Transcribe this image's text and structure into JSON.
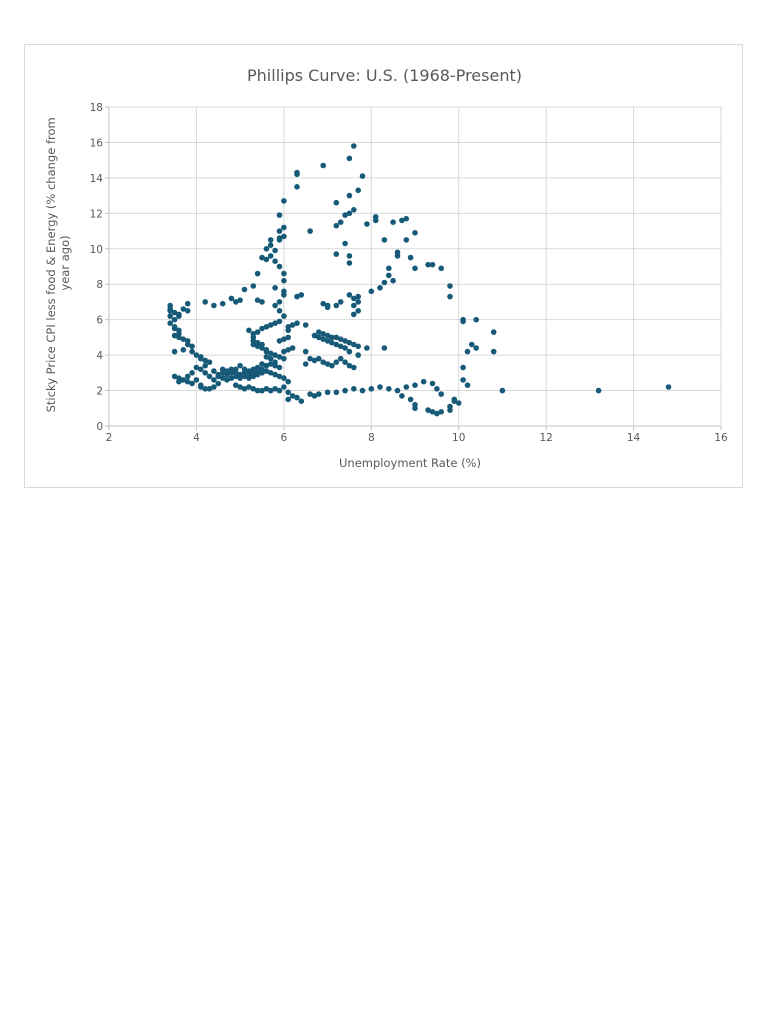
{
  "chart_data": {
    "type": "scatter",
    "title": "Phillips Curve: U.S. (1968-Present)",
    "xlabel": "Unemployment Rate (%)",
    "ylabel_lines": [
      "Sticky Price CPI less food & Energy (% change from",
      "year ago)"
    ],
    "xlim": [
      2,
      16
    ],
    "ylim": [
      0,
      18
    ],
    "x_ticks": [
      "2",
      "4",
      "6",
      "8",
      "10",
      "12",
      "14",
      "16"
    ],
    "y_ticks": [
      "0",
      "2",
      "4",
      "6",
      "8",
      "10",
      "12",
      "14",
      "16",
      "18"
    ],
    "grid": true,
    "legend": "none",
    "marker_color": "#175a78",
    "series": [
      {
        "points": [
          [
            3.4,
            6.8
          ],
          [
            3.4,
            6.6
          ],
          [
            3.4,
            6.5
          ],
          [
            3.5,
            6.4
          ],
          [
            3.4,
            6.2
          ],
          [
            3.5,
            6.0
          ],
          [
            3.4,
            5.8
          ],
          [
            3.5,
            5.6
          ],
          [
            3.5,
            5.5
          ],
          [
            3.6,
            5.4
          ],
          [
            3.6,
            5.2
          ],
          [
            3.5,
            5.1
          ],
          [
            3.6,
            5.0
          ],
          [
            3.7,
            4.9
          ],
          [
            3.8,
            4.8
          ],
          [
            3.8,
            4.6
          ],
          [
            3.9,
            4.5
          ],
          [
            3.7,
            4.3
          ],
          [
            3.9,
            4.2
          ],
          [
            4.0,
            4.0
          ],
          [
            4.1,
            3.9
          ],
          [
            4.1,
            3.8
          ],
          [
            4.2,
            3.7
          ],
          [
            3.5,
            4.2
          ],
          [
            3.6,
            6.3
          ],
          [
            3.7,
            6.6
          ],
          [
            3.8,
            6.9
          ],
          [
            3.6,
            6.2
          ],
          [
            3.8,
            6.5
          ],
          [
            3.5,
            2.8
          ],
          [
            3.6,
            2.7
          ],
          [
            3.6,
            2.5
          ],
          [
            3.7,
            2.6
          ],
          [
            3.8,
            2.5
          ],
          [
            3.9,
            2.4
          ],
          [
            4.0,
            2.6
          ],
          [
            4.1,
            2.3
          ],
          [
            4.1,
            2.2
          ],
          [
            4.2,
            2.1
          ],
          [
            4.3,
            2.1
          ],
          [
            4.4,
            2.2
          ],
          [
            4.5,
            2.4
          ],
          [
            4.4,
            2.6
          ],
          [
            4.3,
            2.8
          ],
          [
            4.2,
            3.0
          ],
          [
            4.1,
            3.2
          ],
          [
            4.2,
            3.4
          ],
          [
            4.3,
            3.6
          ],
          [
            4.0,
            3.3
          ],
          [
            3.9,
            3.0
          ],
          [
            3.8,
            2.8
          ],
          [
            4.4,
            3.1
          ],
          [
            4.5,
            2.9
          ],
          [
            4.6,
            3.0
          ],
          [
            4.7,
            3.1
          ],
          [
            4.8,
            3.2
          ],
          [
            4.9,
            3.0
          ],
          [
            5.0,
            2.9
          ],
          [
            5.1,
            3.0
          ],
          [
            5.2,
            3.1
          ],
          [
            5.3,
            3.2
          ],
          [
            5.4,
            3.3
          ],
          [
            5.5,
            3.2
          ],
          [
            5.6,
            3.4
          ],
          [
            5.7,
            3.5
          ],
          [
            5.8,
            3.4
          ],
          [
            5.9,
            3.3
          ],
          [
            5.8,
            3.6
          ],
          [
            5.7,
            3.8
          ],
          [
            5.6,
            3.9
          ],
          [
            5.5,
            3.0
          ],
          [
            5.4,
            2.9
          ],
          [
            5.3,
            2.8
          ],
          [
            5.2,
            2.7
          ],
          [
            5.1,
            2.8
          ],
          [
            5.0,
            2.7
          ],
          [
            4.9,
            2.8
          ],
          [
            4.8,
            2.7
          ],
          [
            4.7,
            2.6
          ],
          [
            4.6,
            2.7
          ],
          [
            4.5,
            2.8
          ],
          [
            4.6,
            3.2
          ],
          [
            4.7,
            2.9
          ],
          [
            4.8,
            3.0
          ],
          [
            4.9,
            3.2
          ],
          [
            5.0,
            3.4
          ],
          [
            5.1,
            3.2
          ],
          [
            5.2,
            2.9
          ],
          [
            5.3,
            3.0
          ],
          [
            5.4,
            3.1
          ],
          [
            5.5,
            3.5
          ],
          [
            5.6,
            3.1
          ],
          [
            5.7,
            3.0
          ],
          [
            5.8,
            2.9
          ],
          [
            5.9,
            2.8
          ],
          [
            6.0,
            2.7
          ],
          [
            6.1,
            2.5
          ],
          [
            4.9,
            2.3
          ],
          [
            5.0,
            2.2
          ],
          [
            5.1,
            2.1
          ],
          [
            5.2,
            2.2
          ],
          [
            5.3,
            2.1
          ],
          [
            5.4,
            2.0
          ],
          [
            5.5,
            2.0
          ],
          [
            5.6,
            2.1
          ],
          [
            5.7,
            2.0
          ],
          [
            5.8,
            2.1
          ],
          [
            5.9,
            2.0
          ],
          [
            6.0,
            2.2
          ],
          [
            6.1,
            1.9
          ],
          [
            6.2,
            1.7
          ],
          [
            6.1,
            1.5
          ],
          [
            6.3,
            1.6
          ],
          [
            6.4,
            1.4
          ],
          [
            6.6,
            1.8
          ],
          [
            6.7,
            1.7
          ],
          [
            6.8,
            1.8
          ],
          [
            7.0,
            1.9
          ],
          [
            7.2,
            1.9
          ],
          [
            7.4,
            2.0
          ],
          [
            7.6,
            2.1
          ],
          [
            7.8,
            2.0
          ],
          [
            8.0,
            2.1
          ],
          [
            8.2,
            2.2
          ],
          [
            8.4,
            2.1
          ],
          [
            8.6,
            2.0
          ],
          [
            8.8,
            2.2
          ],
          [
            9.0,
            2.3
          ],
          [
            9.2,
            2.5
          ],
          [
            9.4,
            2.4
          ],
          [
            9.5,
            2.1
          ],
          [
            9.6,
            1.8
          ],
          [
            9.9,
            1.5
          ],
          [
            10.0,
            1.3
          ],
          [
            9.8,
            1.1
          ],
          [
            9.6,
            0.8
          ],
          [
            9.5,
            0.7
          ],
          [
            9.4,
            0.8
          ],
          [
            9.3,
            0.9
          ],
          [
            9.0,
            1.2
          ],
          [
            8.9,
            1.5
          ],
          [
            8.7,
            1.7
          ],
          [
            9.0,
            1.0
          ],
          [
            9.8,
            0.9
          ],
          [
            9.9,
            1.4
          ],
          [
            5.3,
            4.8
          ],
          [
            5.3,
            4.6
          ],
          [
            5.4,
            4.7
          ],
          [
            5.4,
            4.5
          ],
          [
            5.5,
            4.4
          ],
          [
            5.5,
            4.6
          ],
          [
            5.6,
            4.3
          ],
          [
            5.6,
            4.2
          ],
          [
            5.7,
            4.1
          ],
          [
            5.8,
            4.0
          ],
          [
            5.9,
            3.9
          ],
          [
            6.0,
            3.8
          ],
          [
            6.0,
            4.2
          ],
          [
            6.1,
            4.3
          ],
          [
            6.2,
            4.4
          ],
          [
            5.3,
            5.0
          ],
          [
            5.3,
            5.2
          ],
          [
            5.4,
            5.3
          ],
          [
            5.2,
            5.4
          ],
          [
            5.5,
            5.5
          ],
          [
            5.6,
            5.6
          ],
          [
            5.7,
            5.7
          ],
          [
            5.8,
            5.8
          ],
          [
            5.9,
            5.9
          ],
          [
            5.9,
            4.8
          ],
          [
            6.0,
            4.9
          ],
          [
            6.1,
            5.0
          ],
          [
            6.1,
            5.4
          ],
          [
            6.0,
            6.2
          ],
          [
            5.9,
            6.5
          ],
          [
            5.8,
            6.8
          ],
          [
            5.9,
            7.0
          ],
          [
            6.0,
            7.4
          ],
          [
            6.0,
            7.6
          ],
          [
            5.8,
            7.8
          ],
          [
            6.0,
            8.2
          ],
          [
            6.0,
            8.6
          ],
          [
            5.9,
            9.0
          ],
          [
            5.8,
            9.3
          ],
          [
            5.7,
            9.6
          ],
          [
            5.8,
            9.9
          ],
          [
            5.7,
            10.2
          ],
          [
            5.6,
            10.0
          ],
          [
            5.5,
            9.5
          ],
          [
            5.4,
            8.6
          ],
          [
            5.3,
            7.9
          ],
          [
            5.4,
            7.1
          ],
          [
            5.5,
            7.0
          ],
          [
            5.1,
            7.7
          ],
          [
            5.0,
            7.1
          ],
          [
            4.9,
            7.0
          ],
          [
            4.8,
            7.2
          ],
          [
            4.6,
            6.9
          ],
          [
            4.4,
            6.8
          ],
          [
            4.2,
            7.0
          ],
          [
            5.9,
            11.0
          ],
          [
            6.0,
            10.7
          ],
          [
            6.0,
            11.2
          ],
          [
            5.9,
            11.9
          ],
          [
            6.0,
            12.7
          ],
          [
            5.9,
            10.6
          ],
          [
            5.6,
            9.4
          ],
          [
            5.9,
            10.5
          ],
          [
            5.7,
            10.5
          ],
          [
            6.1,
            5.6
          ],
          [
            6.2,
            5.7
          ],
          [
            6.3,
            5.8
          ],
          [
            6.5,
            5.7
          ],
          [
            6.3,
            13.5
          ],
          [
            6.3,
            14.2
          ],
          [
            6.3,
            14.3
          ],
          [
            6.4,
            7.4
          ],
          [
            6.3,
            7.3
          ],
          [
            6.5,
            4.2
          ],
          [
            6.5,
            3.5
          ],
          [
            6.6,
            3.8
          ],
          [
            6.7,
            3.7
          ],
          [
            6.8,
            3.8
          ],
          [
            6.9,
            3.6
          ],
          [
            7.0,
            3.5
          ],
          [
            7.1,
            3.4
          ],
          [
            7.2,
            3.6
          ],
          [
            7.3,
            3.8
          ],
          [
            7.4,
            3.6
          ],
          [
            7.5,
            3.4
          ],
          [
            7.6,
            3.3
          ],
          [
            7.7,
            4.0
          ],
          [
            7.5,
            4.2
          ],
          [
            7.4,
            4.4
          ],
          [
            7.3,
            4.5
          ],
          [
            7.2,
            4.6
          ],
          [
            7.1,
            4.7
          ],
          [
            7.0,
            4.8
          ],
          [
            6.9,
            4.9
          ],
          [
            6.8,
            5.0
          ],
          [
            6.7,
            5.1
          ],
          [
            6.8,
            5.3
          ],
          [
            6.9,
            5.2
          ],
          [
            7.0,
            5.1
          ],
          [
            7.1,
            5.0
          ],
          [
            7.2,
            5.0
          ],
          [
            7.3,
            4.9
          ],
          [
            7.4,
            4.8
          ],
          [
            7.5,
            4.7
          ],
          [
            7.6,
            4.6
          ],
          [
            7.7,
            4.5
          ],
          [
            7.9,
            4.4
          ],
          [
            8.3,
            4.4
          ],
          [
            7.6,
            6.3
          ],
          [
            7.7,
            6.5
          ],
          [
            7.7,
            7.0
          ],
          [
            7.6,
            7.2
          ],
          [
            7.5,
            7.4
          ],
          [
            7.7,
            7.3
          ],
          [
            7.6,
            6.8
          ],
          [
            7.3,
            7.0
          ],
          [
            7.2,
            6.8
          ],
          [
            7.0,
            6.8
          ],
          [
            6.9,
            6.9
          ],
          [
            7.0,
            6.7
          ],
          [
            6.6,
            11.0
          ],
          [
            6.9,
            14.7
          ],
          [
            7.2,
            12.6
          ],
          [
            7.2,
            11.3
          ],
          [
            7.3,
            11.5
          ],
          [
            7.4,
            11.9
          ],
          [
            7.5,
            12.0
          ],
          [
            7.5,
            13.0
          ],
          [
            7.5,
            15.1
          ],
          [
            7.6,
            15.8
          ],
          [
            7.7,
            13.3
          ],
          [
            7.8,
            14.1
          ],
          [
            7.6,
            12.2
          ],
          [
            7.4,
            10.3
          ],
          [
            7.5,
            9.6
          ],
          [
            7.5,
            9.2
          ],
          [
            7.2,
            9.7
          ],
          [
            7.9,
            11.4
          ],
          [
            8.1,
            11.8
          ],
          [
            8.1,
            11.6
          ],
          [
            8.3,
            10.5
          ],
          [
            8.4,
            8.9
          ],
          [
            8.4,
            8.5
          ],
          [
            8.5,
            8.2
          ],
          [
            8.3,
            8.1
          ],
          [
            8.2,
            7.8
          ],
          [
            8.0,
            7.6
          ],
          [
            8.6,
            9.6
          ],
          [
            8.7,
            11.6
          ],
          [
            8.8,
            11.7
          ],
          [
            8.8,
            10.5
          ],
          [
            8.9,
            9.5
          ],
          [
            9.0,
            10.9
          ],
          [
            9.0,
            8.9
          ],
          [
            8.6,
            9.8
          ],
          [
            8.5,
            11.5
          ],
          [
            9.3,
            9.1
          ],
          [
            9.4,
            9.1
          ],
          [
            9.6,
            8.9
          ],
          [
            9.8,
            7.9
          ],
          [
            9.8,
            7.3
          ],
          [
            10.1,
            6.0
          ],
          [
            10.4,
            6.0
          ],
          [
            10.1,
            5.9
          ],
          [
            10.8,
            5.3
          ],
          [
            10.8,
            4.2
          ],
          [
            10.4,
            4.4
          ],
          [
            10.3,
            4.6
          ],
          [
            10.2,
            4.2
          ],
          [
            10.1,
            3.3
          ],
          [
            10.1,
            2.6
          ],
          [
            10.2,
            2.3
          ],
          [
            11.0,
            2.0
          ],
          [
            13.2,
            2.0
          ],
          [
            14.8,
            2.2
          ]
        ]
      }
    ]
  }
}
